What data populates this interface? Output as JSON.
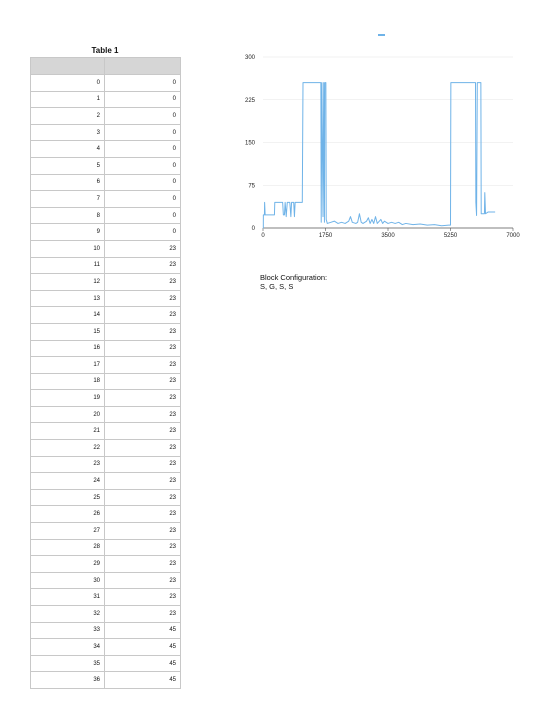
{
  "table": {
    "title": "Table 1",
    "headers": [
      "",
      ""
    ],
    "rows": [
      [
        0,
        0
      ],
      [
        1,
        0
      ],
      [
        2,
        0
      ],
      [
        3,
        0
      ],
      [
        4,
        0
      ],
      [
        5,
        0
      ],
      [
        6,
        0
      ],
      [
        7,
        0
      ],
      [
        8,
        0
      ],
      [
        9,
        0
      ],
      [
        10,
        23
      ],
      [
        11,
        23
      ],
      [
        12,
        23
      ],
      [
        13,
        23
      ],
      [
        14,
        23
      ],
      [
        15,
        23
      ],
      [
        16,
        23
      ],
      [
        17,
        23
      ],
      [
        18,
        23
      ],
      [
        19,
        23
      ],
      [
        20,
        23
      ],
      [
        21,
        23
      ],
      [
        22,
        23
      ],
      [
        23,
        23
      ],
      [
        24,
        23
      ],
      [
        25,
        23
      ],
      [
        26,
        23
      ],
      [
        27,
        23
      ],
      [
        28,
        23
      ],
      [
        29,
        23
      ],
      [
        30,
        23
      ],
      [
        31,
        23
      ],
      [
        32,
        23
      ],
      [
        33,
        45
      ],
      [
        34,
        45
      ],
      [
        35,
        45
      ],
      [
        36,
        45
      ]
    ]
  },
  "block_config": {
    "label": "Block Configuration:",
    "value": "S, G, S, S"
  },
  "colors": {
    "series": "#6fb3e8",
    "grid": "#e6e6e6",
    "axis": "#555555",
    "header_bg": "#d6d6d6"
  },
  "chart_data": {
    "type": "line",
    "title": "",
    "xlabel": "",
    "ylabel": "",
    "xlim": [
      0,
      7000
    ],
    "ylim": [
      0,
      300
    ],
    "x_ticks": [
      0,
      1750,
      3500,
      5250,
      7000
    ],
    "y_ticks": [
      0,
      75,
      150,
      225,
      300
    ],
    "grid": true,
    "series": [
      {
        "name": "",
        "points": [
          [
            0,
            0
          ],
          [
            9,
            0
          ],
          [
            10,
            23
          ],
          [
            40,
            23
          ],
          [
            45,
            45
          ],
          [
            60,
            23
          ],
          [
            300,
            23
          ],
          [
            320,
            23
          ],
          [
            330,
            45
          ],
          [
            550,
            45
          ],
          [
            570,
            23
          ],
          [
            600,
            23
          ],
          [
            620,
            45
          ],
          [
            650,
            20
          ],
          [
            680,
            45
          ],
          [
            750,
            45
          ],
          [
            780,
            20
          ],
          [
            800,
            45
          ],
          [
            860,
            45
          ],
          [
            880,
            20
          ],
          [
            900,
            45
          ],
          [
            1100,
            45
          ],
          [
            1120,
            255
          ],
          [
            1620,
            255
          ],
          [
            1630,
            10
          ],
          [
            1650,
            255
          ],
          [
            1680,
            20
          ],
          [
            1700,
            255
          ],
          [
            1720,
            10
          ],
          [
            1730,
            255
          ],
          [
            1760,
            255
          ],
          [
            1770,
            15
          ],
          [
            1800,
            8
          ],
          [
            1900,
            10
          ],
          [
            2000,
            12
          ],
          [
            2100,
            8
          ],
          [
            2200,
            10
          ],
          [
            2300,
            8
          ],
          [
            2400,
            12
          ],
          [
            2450,
            20
          ],
          [
            2500,
            10
          ],
          [
            2600,
            8
          ],
          [
            2650,
            10
          ],
          [
            2700,
            25
          ],
          [
            2750,
            10
          ],
          [
            2800,
            8
          ],
          [
            2900,
            12
          ],
          [
            2950,
            18
          ],
          [
            3000,
            8
          ],
          [
            3050,
            15
          ],
          [
            3100,
            8
          ],
          [
            3150,
            20
          ],
          [
            3200,
            8
          ],
          [
            3300,
            15
          ],
          [
            3350,
            8
          ],
          [
            3400,
            12
          ],
          [
            3500,
            8
          ],
          [
            3600,
            10
          ],
          [
            3700,
            8
          ],
          [
            3800,
            10
          ],
          [
            3900,
            6
          ],
          [
            4000,
            8
          ],
          [
            4200,
            6
          ],
          [
            4400,
            7
          ],
          [
            4600,
            5
          ],
          [
            4800,
            6
          ],
          [
            5000,
            4
          ],
          [
            5200,
            5
          ],
          [
            5250,
            5
          ],
          [
            5260,
            255
          ],
          [
            5950,
            255
          ],
          [
            5960,
            45
          ],
          [
            5980,
            22
          ],
          [
            6000,
            255
          ],
          [
            6100,
            255
          ],
          [
            6110,
            25
          ],
          [
            6200,
            25
          ],
          [
            6210,
            62
          ],
          [
            6230,
            25
          ],
          [
            6300,
            28
          ],
          [
            6500,
            28
          ]
        ]
      }
    ]
  }
}
